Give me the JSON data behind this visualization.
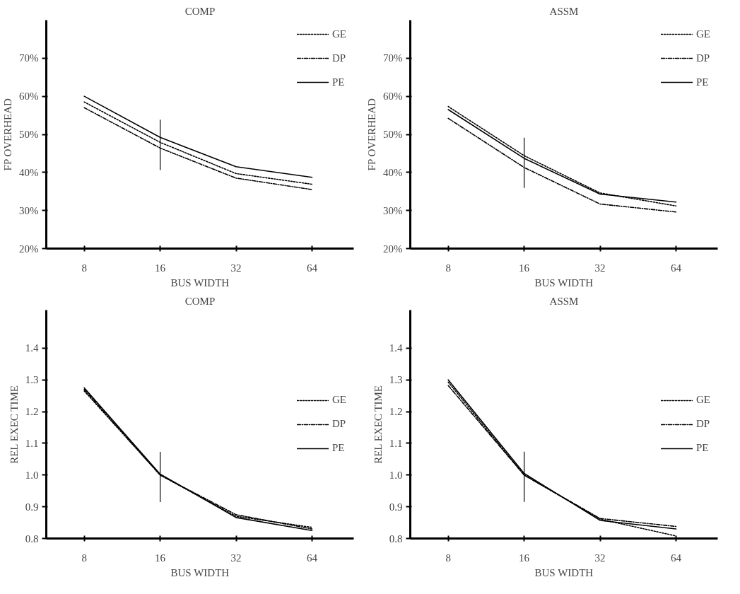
{
  "chart_data": [
    {
      "type": "line",
      "title": "COMP",
      "xlabel": "BUS WIDTH",
      "ylabel": "FP OVERHEAD",
      "categories": [
        "8",
        "16",
        "32",
        "64"
      ],
      "ylim": [
        20,
        80
      ],
      "yticks": [
        {
          "value": 20,
          "label": "20%"
        },
        {
          "value": 30,
          "label": "30%"
        },
        {
          "value": 40,
          "label": "40%"
        },
        {
          "value": 50,
          "label": "50%"
        },
        {
          "value": 60,
          "label": "60%"
        },
        {
          "value": 70,
          "label": "70%"
        }
      ],
      "legend": "top right",
      "grid": false,
      "ref_lines": [
        {
          "axis": "x",
          "value": "16",
          "color": "#000000"
        }
      ],
      "series": [
        {
          "name": "GE",
          "color": "#000000",
          "line_style": "dotted",
          "values": [
            58.5,
            47.9,
            39.7,
            36.9
          ]
        },
        {
          "name": "DP",
          "color": "#000000",
          "line_style": "dashdot",
          "values": [
            57.0,
            46.4,
            38.5,
            35.5
          ]
        },
        {
          "name": "PE",
          "color": "#000000",
          "line_style": "solid",
          "values": [
            60.0,
            49.2,
            41.5,
            38.7
          ]
        }
      ]
    },
    {
      "type": "line",
      "title": "ASSM",
      "xlabel": "BUS WIDTH",
      "ylabel": "FP OVERHEAD",
      "categories": [
        "8",
        "16",
        "32",
        "64"
      ],
      "ylim": [
        20,
        80
      ],
      "yticks": [
        {
          "value": 20,
          "label": "20%"
        },
        {
          "value": 30,
          "label": "30%"
        },
        {
          "value": 40,
          "label": "40%"
        },
        {
          "value": 50,
          "label": "50%"
        },
        {
          "value": 60,
          "label": "60%"
        },
        {
          "value": 70,
          "label": "70%"
        }
      ],
      "legend": "top right",
      "grid": false,
      "ref_lines": [
        {
          "axis": "x",
          "value": "16",
          "color": "#000000"
        }
      ],
      "series": [
        {
          "name": "GE",
          "color": "#000000",
          "line_style": "dotted",
          "values": [
            57.3,
            44.4,
            34.6,
            31.2
          ]
        },
        {
          "name": "DP",
          "color": "#000000",
          "line_style": "dashdot",
          "values": [
            54.2,
            41.3,
            31.7,
            29.6
          ]
        },
        {
          "name": "PE",
          "color": "#000000",
          "line_style": "solid",
          "values": [
            56.5,
            43.7,
            34.3,
            32.2
          ]
        }
      ]
    },
    {
      "type": "line",
      "title": "COMP",
      "xlabel": "BUS WIDTH",
      "ylabel": "REL EXEC TIME",
      "categories": [
        "8",
        "16",
        "32",
        "64"
      ],
      "ylim": [
        0.8,
        1.52
      ],
      "yticks": [
        {
          "value": 0.8,
          "label": "0.8"
        },
        {
          "value": 0.9,
          "label": "0.9"
        },
        {
          "value": 1.0,
          "label": "1.0"
        },
        {
          "value": 1.1,
          "label": "1.1"
        },
        {
          "value": 1.2,
          "label": "1.2"
        },
        {
          "value": 1.3,
          "label": "1.3"
        },
        {
          "value": 1.4,
          "label": "1.4"
        }
      ],
      "legend": "right",
      "grid": false,
      "ref_lines": [
        {
          "axis": "x",
          "value": "16",
          "color": "#000000"
        }
      ],
      "series": [
        {
          "name": "GE",
          "color": "#000000",
          "line_style": "dotted",
          "values": [
            1.265,
            1.0,
            0.87,
            0.835
          ]
        },
        {
          "name": "DP",
          "color": "#000000",
          "line_style": "dashdot",
          "values": [
            1.27,
            1.0,
            0.875,
            0.83
          ]
        },
        {
          "name": "PE",
          "color": "#000000",
          "line_style": "solid",
          "values": [
            1.275,
            1.003,
            0.866,
            0.825
          ]
        }
      ]
    },
    {
      "type": "line",
      "title": "ASSM",
      "xlabel": "BUS WIDTH",
      "ylabel": "REL EXEC TIME",
      "categories": [
        "8",
        "16",
        "32",
        "64"
      ],
      "ylim": [
        0.8,
        1.52
      ],
      "yticks": [
        {
          "value": 0.8,
          "label": "0.8"
        },
        {
          "value": 0.9,
          "label": "0.9"
        },
        {
          "value": 1.0,
          "label": "1.0"
        },
        {
          "value": 1.1,
          "label": "1.1"
        },
        {
          "value": 1.2,
          "label": "1.2"
        },
        {
          "value": 1.3,
          "label": "1.3"
        },
        {
          "value": 1.4,
          "label": "1.4"
        }
      ],
      "legend": "right",
      "grid": false,
      "ref_lines": [
        {
          "axis": "x",
          "value": "16",
          "color": "#000000"
        }
      ],
      "series": [
        {
          "name": "GE",
          "color": "#000000",
          "line_style": "dotted",
          "values": [
            1.293,
            1.0,
            0.861,
            0.808
          ]
        },
        {
          "name": "DP",
          "color": "#000000",
          "line_style": "dashdot",
          "values": [
            1.282,
            1.0,
            0.863,
            0.838
          ]
        },
        {
          "name": "PE",
          "color": "#000000",
          "line_style": "solid",
          "values": [
            1.3,
            1.005,
            0.857,
            0.83
          ]
        }
      ]
    }
  ]
}
